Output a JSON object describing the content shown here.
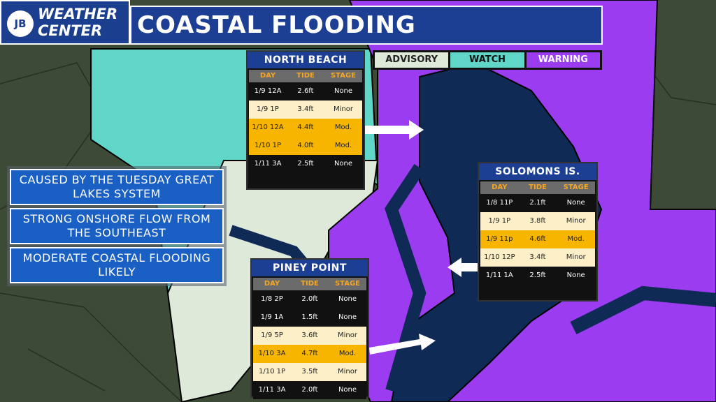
{
  "header": {
    "logo_badge": "JB",
    "logo_top": "WEATHER",
    "logo_bottom": "CENTER",
    "title": "COASTAL FLOODING"
  },
  "legend": [
    "ADVISORY",
    "WATCH",
    "WARNING"
  ],
  "notes": [
    "CAUSED BY THE TUESDAY GREAT LAKES SYSTEM",
    "STRONG ONSHORE FLOW FROM THE SOUTHEAST",
    "MODERATE COASTAL FLOODING LIKELY"
  ],
  "tables": [
    {
      "title": "NORTH BEACH",
      "columns": [
        "DAY",
        "TIDE",
        "STAGE"
      ],
      "rows": [
        [
          "1/9 12A",
          "2.6ft",
          "None"
        ],
        [
          "1/9 1P",
          "3.4ft",
          "Minor"
        ],
        [
          "1/10 12A",
          "4.4ft",
          "Mod."
        ],
        [
          "1/10 1P",
          "4.0ft",
          "Mod."
        ],
        [
          "1/11 3A",
          "2.5ft",
          "None"
        ]
      ]
    },
    {
      "title": "SOLOMONS IS.",
      "columns": [
        "DAY",
        "TIDE",
        "STAGE"
      ],
      "rows": [
        [
          "1/8 11P",
          "2.1ft",
          "None"
        ],
        [
          "1/9 1P",
          "3.8ft",
          "Minor"
        ],
        [
          "1/9 11p",
          "4.6ft",
          "Mod."
        ],
        [
          "1/10 12P",
          "3.4ft",
          "Minor"
        ],
        [
          "1/11 1A",
          "2.5ft",
          "None"
        ]
      ]
    },
    {
      "title": "PINEY POINT",
      "columns": [
        "DAY",
        "TIDE",
        "STAGE"
      ],
      "rows": [
        [
          "1/8 2P",
          "2.0ft",
          "None"
        ],
        [
          "1/9 1A",
          "1.5ft",
          "None"
        ],
        [
          "1/9 5P",
          "3.6ft",
          "Minor"
        ],
        [
          "1/10 3A",
          "4.7ft",
          "Mod."
        ],
        [
          "1/10 1P",
          "3.5ft",
          "Minor"
        ],
        [
          "1/11 3A",
          "2.0ft",
          "None"
        ]
      ]
    }
  ]
}
